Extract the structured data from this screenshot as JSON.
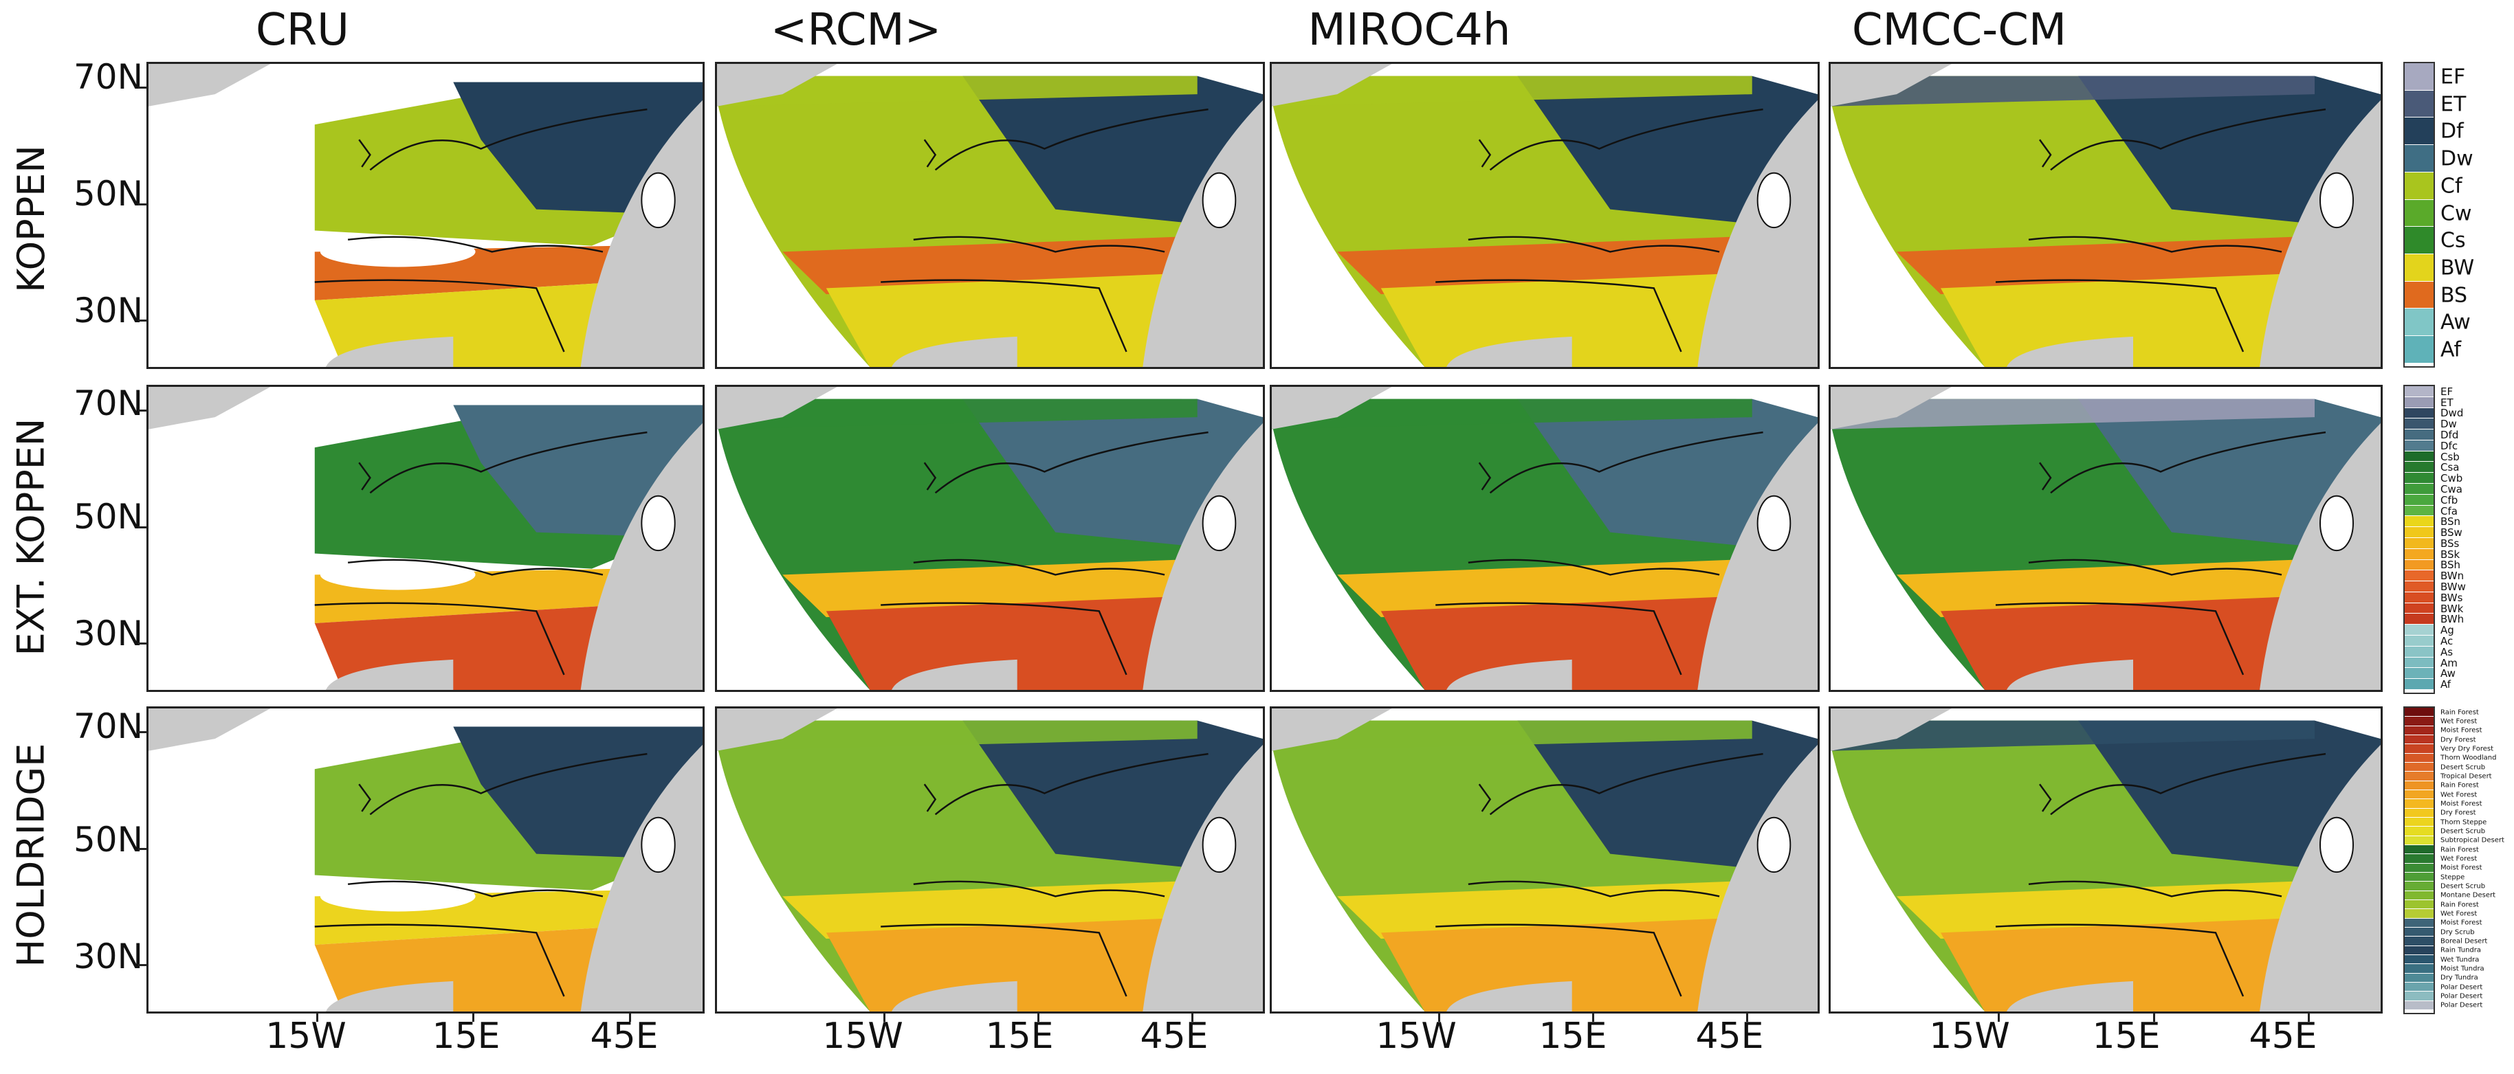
{
  "columns": [
    "CRU",
    "<RCM>",
    "MIROC4h",
    "CMCC-CM"
  ],
  "rows": [
    "KOPPEN",
    "EXT. KOPPEN",
    "HOLDRIDGE"
  ],
  "lat_labels": [
    "70N",
    "50N",
    "30N"
  ],
  "lon_labels": [
    "15W",
    "15E",
    "45E"
  ],
  "legends": {
    "koppen": {
      "items": [
        "EF",
        "ET",
        "Df",
        "Dw",
        "Cf",
        "Cw",
        "Cs",
        "BW",
        "BS",
        "Aw",
        "Af"
      ],
      "colors": [
        "#a7a9c0",
        "#4a5a78",
        "#23405a",
        "#3f6e84",
        "#a9c51e",
        "#5aaa2a",
        "#2f8a2a",
        "#e3d41c",
        "#e06a1e",
        "#80c6c6",
        "#5fb2b8"
      ]
    },
    "ext_koppen": {
      "items": [
        "EF",
        "ET",
        "Dwd",
        "Dw",
        "Dfd",
        "Dfc",
        "Csb",
        "Csa",
        "Cwb",
        "Cwa",
        "Cfb",
        "Cfa",
        "BSn",
        "BSw",
        "BSs",
        "BSk",
        "BSh",
        "BWn",
        "BWw",
        "BWs",
        "BWk",
        "BWh",
        "Ag",
        "Ac",
        "As",
        "Am",
        "Aw",
        "Af"
      ],
      "colors": [
        "#b3b5c8",
        "#9a9cb4",
        "#2f4660",
        "#3a566e",
        "#466c80",
        "#537b8e",
        "#1d6c2a",
        "#267a2e",
        "#2f8a33",
        "#3f9c3a",
        "#4aa83e",
        "#5db444",
        "#ead61a",
        "#f0c81a",
        "#f2b81c",
        "#f4a820",
        "#f29a22",
        "#e8682a",
        "#e05a26",
        "#d84e22",
        "#cf4220",
        "#c63a1e",
        "#a6d2d2",
        "#98cccc",
        "#8ac4c6",
        "#7cbcc0",
        "#6cb2b8",
        "#5ca8b0"
      ]
    },
    "holdridge": {
      "items": [
        "Rain Forest",
        "Wet Forest",
        "Moist Forest",
        "Dry Forest",
        "Very Dry Forest",
        "Thorn Woodland",
        "Desert Scrub",
        "Tropical Desert",
        "Rain Forest",
        "Wet Forest",
        "Moist Forest",
        "Dry Forest",
        "Thorn Steppe",
        "Desert Scrub",
        "Subtropical Desert",
        "Rain Forest",
        "Wet Forest",
        "Moist Forest",
        "Steppe",
        "Desert Scrub",
        "Montane Desert",
        "Rain Forest",
        "Wet Forest",
        "Moist Forest",
        "Dry Scrub",
        "Boreal Desert",
        "Rain Tundra",
        "Wet Tundra",
        "Moist Tundra",
        "Dry Tundra",
        "Polar Desert",
        "Polar Desert",
        "Polar Desert"
      ],
      "colors": [
        "#6e0e0e",
        "#8a1a14",
        "#a3261a",
        "#b93420",
        "#c94422",
        "#d65826",
        "#e06a28",
        "#e67c2a",
        "#ee9424",
        "#f2a622",
        "#f4b820",
        "#f2c81e",
        "#ecd41e",
        "#e6dc22",
        "#dce030",
        "#1f6a2a",
        "#2a7a30",
        "#3a8c34",
        "#4e9e36",
        "#66ac34",
        "#80b830",
        "#9cc42e",
        "#b6cc34",
        "#3e6478",
        "#355a70",
        "#2d4e66",
        "#27435c",
        "#2a566e",
        "#3a7082",
        "#4e8a96",
        "#6aa4ac",
        "#8cbcc0",
        "#b8bcc8"
      ]
    }
  }
}
